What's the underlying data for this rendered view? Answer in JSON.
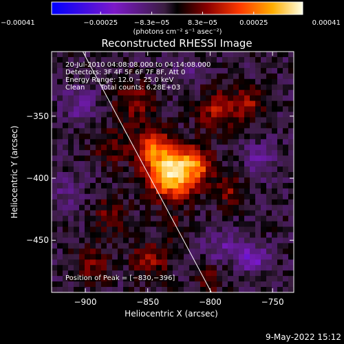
{
  "chart_data": {
    "type": "heatmap",
    "title": "Reconstructed RHESSI Image",
    "xlabel": "Heliocentric X (arcsec)",
    "ylabel": "Heliocentric Y (arcsec)",
    "xlim": [
      -927,
      -733
    ],
    "ylim": [
      -492,
      -298
    ],
    "x_ticks": [
      -900,
      -850,
      -800,
      -750
    ],
    "y_ticks": [
      -450,
      -400,
      -350
    ],
    "x_tick_labels": [
      "−900",
      "−850",
      "−800",
      "−750"
    ],
    "y_tick_labels": [
      "−450",
      "−400",
      "−350"
    ],
    "colorbar": {
      "ticks": [
        -0.00041,
        -0.00025,
        -8.3e-05,
        8.3e-05,
        0.00025,
        0.00041
      ],
      "tick_labels": [
        "−0.00041",
        "−0.00025",
        "−8.3e−05",
        "8.3e−05",
        "0.00025",
        "0.00041"
      ],
      "unit_label": "(photons cm⁻² s⁻¹ asec⁻²)",
      "range": [
        -0.00041,
        0.00041
      ]
    },
    "annotations": {
      "time_range": "20‑Jul‑2010 04:08:08.000 to 04:14:08.000",
      "detectors": "Detectors: 3F 4F 5F 6F 7F 8F, Att 0",
      "energy": "Energy Range: 12.0 − 25.0 keV",
      "algorithm": "Clean",
      "total_counts": "Total counts: 6.28E+03",
      "peak": "Position of Peak = [−830,−396]"
    },
    "peak_position": [
      -830,
      -396
    ],
    "limb_line": {
      "from": [
        -902,
        -298
      ],
      "to": [
        -799,
        -492
      ]
    },
    "emission_sources": [
      {
        "x": -830,
        "y": -396,
        "sigma": 14,
        "value": 0.00041
      },
      {
        "x": -847,
        "y": -375,
        "sigma": 10,
        "value": 0.00022
      },
      {
        "x": -810,
        "y": -388,
        "sigma": 9,
        "value": 0.00018
      },
      {
        "x": -795,
        "y": -345,
        "sigma": 11,
        "value": 0.00016
      },
      {
        "x": -770,
        "y": -340,
        "sigma": 9,
        "value": 0.00014
      },
      {
        "x": -860,
        "y": -340,
        "sigma": 12,
        "value": 0.00013
      },
      {
        "x": -880,
        "y": -375,
        "sigma": 10,
        "value": 0.00011
      },
      {
        "x": -785,
        "y": -410,
        "sigma": 9,
        "value": 0.00012
      },
      {
        "x": -880,
        "y": -430,
        "sigma": 11,
        "value": 0.0001
      },
      {
        "x": -895,
        "y": -470,
        "sigma": 10,
        "value": 0.00012
      },
      {
        "x": -848,
        "y": -466,
        "sigma": 11,
        "value": 0.00013
      },
      {
        "x": -800,
        "y": -482,
        "sigma": 9,
        "value": 9e-05
      },
      {
        "x": -830,
        "y": -440,
        "sigma": 8,
        "value": 8e-05
      },
      {
        "x": -765,
        "y": -465,
        "sigma": 7,
        "value": -0.00018
      },
      {
        "x": -790,
        "y": -455,
        "sigma": 10,
        "value": -0.0001
      },
      {
        "x": -905,
        "y": -340,
        "sigma": 10,
        "value": -9e-05
      },
      {
        "x": -915,
        "y": -410,
        "sigma": 9,
        "value": -7e-05
      },
      {
        "x": -760,
        "y": -385,
        "sigma": 9,
        "value": -9e-05
      },
      {
        "x": -820,
        "y": -315,
        "sigma": 8,
        "value": -6e-05
      }
    ],
    "grid": false
  },
  "footer": {
    "date": "9‑May‑2022 15:12"
  }
}
